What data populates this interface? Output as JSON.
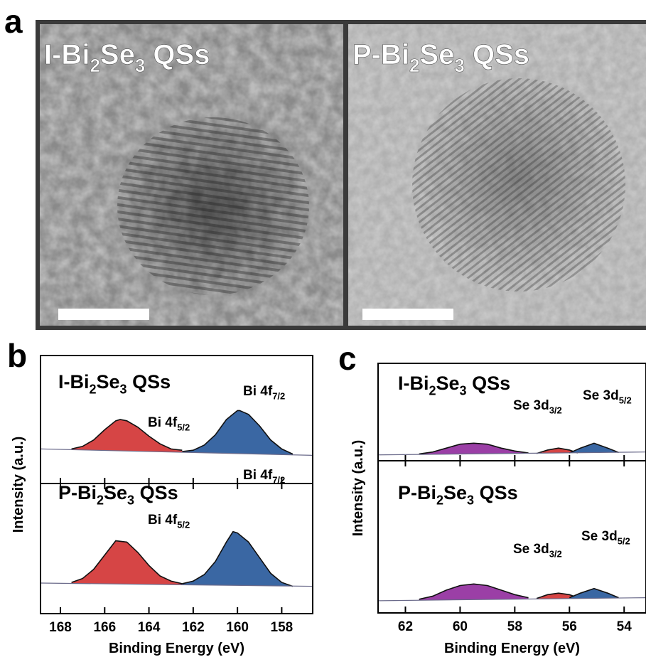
{
  "images": {
    "panel": "a",
    "items": [
      {
        "label": [
          "I-Bi",
          "2",
          "Se",
          "3",
          " QSs"
        ]
      },
      {
        "label": [
          "P-Bi",
          "2",
          "Se",
          "3",
          " QSs"
        ]
      }
    ]
  },
  "chart_data": [
    {
      "type": "area",
      "panel": "b",
      "x_label": "Binding Energy (eV)",
      "y_label": "Intensity (a.u.)",
      "xlim": [
        168.9,
        156.6
      ],
      "xticks": [
        168,
        166,
        164,
        162,
        160,
        158
      ],
      "subplots": [
        {
          "title": [
            "I-Bi",
            "2",
            "Se",
            "3",
            " QSs"
          ],
          "ylim": [
            0,
            1
          ],
          "background": {
            "x": [
              168.9,
              156.6
            ],
            "values": [
              0.27,
              0.22
            ]
          },
          "series": [
            {
              "name": [
                "Bi 4f",
                "5/2"
              ],
              "color": "#d64545",
              "x": [
                167.5,
                167,
                166.5,
                166,
                165.5,
                165.3,
                165,
                164.5,
                164,
                163.5,
                163,
                162.5
              ],
              "values": [
                0.27,
                0.29,
                0.34,
                0.42,
                0.49,
                0.5,
                0.49,
                0.44,
                0.37,
                0.31,
                0.27,
                0.26
              ]
            },
            {
              "name": [
                "Bi 4f",
                "7/2"
              ],
              "color": "#3a67a3",
              "x": [
                162.5,
                162,
                161.5,
                161,
                160.5,
                160,
                159.9,
                159.5,
                159,
                158.5,
                158,
                157.5
              ],
              "values": [
                0.25,
                0.26,
                0.3,
                0.38,
                0.5,
                0.57,
                0.57,
                0.54,
                0.45,
                0.34,
                0.27,
                0.23
              ]
            }
          ]
        },
        {
          "title": [
            "P-Bi",
            "2",
            "Se",
            "3",
            " QSs"
          ],
          "ylim": [
            0,
            1
          ],
          "background": {
            "x": [
              168.9,
              156.6
            ],
            "values": [
              0.235,
              0.21
            ]
          },
          "series": [
            {
              "name": [
                "Bi 4f",
                "5/2"
              ],
              "color": "#d64545",
              "x": [
                167.5,
                167,
                166.5,
                166,
                165.5,
                165,
                164.5,
                164,
                163.5,
                163,
                162.5
              ],
              "values": [
                0.24,
                0.27,
                0.34,
                0.45,
                0.56,
                0.55,
                0.47,
                0.37,
                0.29,
                0.25,
                0.23
              ]
            },
            {
              "name": [
                "Bi 4f",
                "7/2"
              ],
              "color": "#3a67a3",
              "x": [
                162.5,
                162,
                161.5,
                161,
                160.5,
                160.2,
                160,
                159.5,
                159,
                158.5,
                158,
                157.5
              ],
              "values": [
                0.23,
                0.25,
                0.3,
                0.4,
                0.55,
                0.63,
                0.62,
                0.55,
                0.43,
                0.31,
                0.24,
                0.21
              ]
            }
          ]
        }
      ]
    },
    {
      "type": "area",
      "panel": "c",
      "x_label": "Binding Energy (eV)",
      "y_label": "Intensity (a.u.)",
      "xlim": [
        63,
        53.2
      ],
      "xticks": [
        62,
        60,
        58,
        56,
        54
      ],
      "subplots": [
        {
          "title": [
            "I-Bi",
            "2",
            "Se",
            "3",
            " QSs"
          ],
          "ylim": [
            0,
            1
          ],
          "background": {
            "x": [
              63,
              53.2
            ],
            "values": [
              0.06,
              0.09
            ]
          },
          "series": [
            {
              "color": "#9b3fa6",
              "x": [
                61.5,
                61,
                60.5,
                60,
                59.5,
                59,
                58.5,
                58,
                57.5
              ],
              "values": [
                0.07,
                0.09,
                0.13,
                0.17,
                0.18,
                0.17,
                0.13,
                0.1,
                0.08
              ]
            },
            {
              "name": [
                "Se 3d",
                "3/2"
              ],
              "color": "#d64545",
              "x": [
                57.2,
                56.8,
                56.4,
                56,
                55.7
              ],
              "values": [
                0.075,
                0.11,
                0.13,
                0.11,
                0.08
              ]
            },
            {
              "name": [
                "Se 3d",
                "5/2"
              ],
              "color": "#3a67a3",
              "x": [
                56,
                55.6,
                55.1,
                54.6,
                54.2
              ],
              "values": [
                0.08,
                0.13,
                0.18,
                0.13,
                0.085
              ]
            }
          ]
        },
        {
          "title": [
            "P-Bi",
            "2",
            "Se",
            "3",
            " QSs"
          ],
          "ylim": [
            0,
            1
          ],
          "background": {
            "x": [
              63,
              53.2
            ],
            "values": [
              0.08,
              0.1
            ]
          },
          "series": [
            {
              "color": "#9b3fa6",
              "x": [
                61.5,
                61,
                60.5,
                60,
                59.5,
                59,
                58.5,
                58,
                57.5
              ],
              "values": [
                0.09,
                0.11,
                0.15,
                0.18,
                0.19,
                0.18,
                0.15,
                0.12,
                0.1
              ]
            },
            {
              "name": [
                "Se 3d",
                "3/2"
              ],
              "color": "#d64545",
              "x": [
                57.2,
                56.8,
                56.4,
                56,
                55.7
              ],
              "values": [
                0.095,
                0.12,
                0.13,
                0.12,
                0.1
              ]
            },
            {
              "name": [
                "Se 3d",
                "5/2"
              ],
              "color": "#3a67a3",
              "x": [
                56,
                55.6,
                55.1,
                54.6,
                54.2
              ],
              "values": [
                0.1,
                0.13,
                0.16,
                0.13,
                0.1
              ]
            }
          ]
        }
      ]
    }
  ]
}
